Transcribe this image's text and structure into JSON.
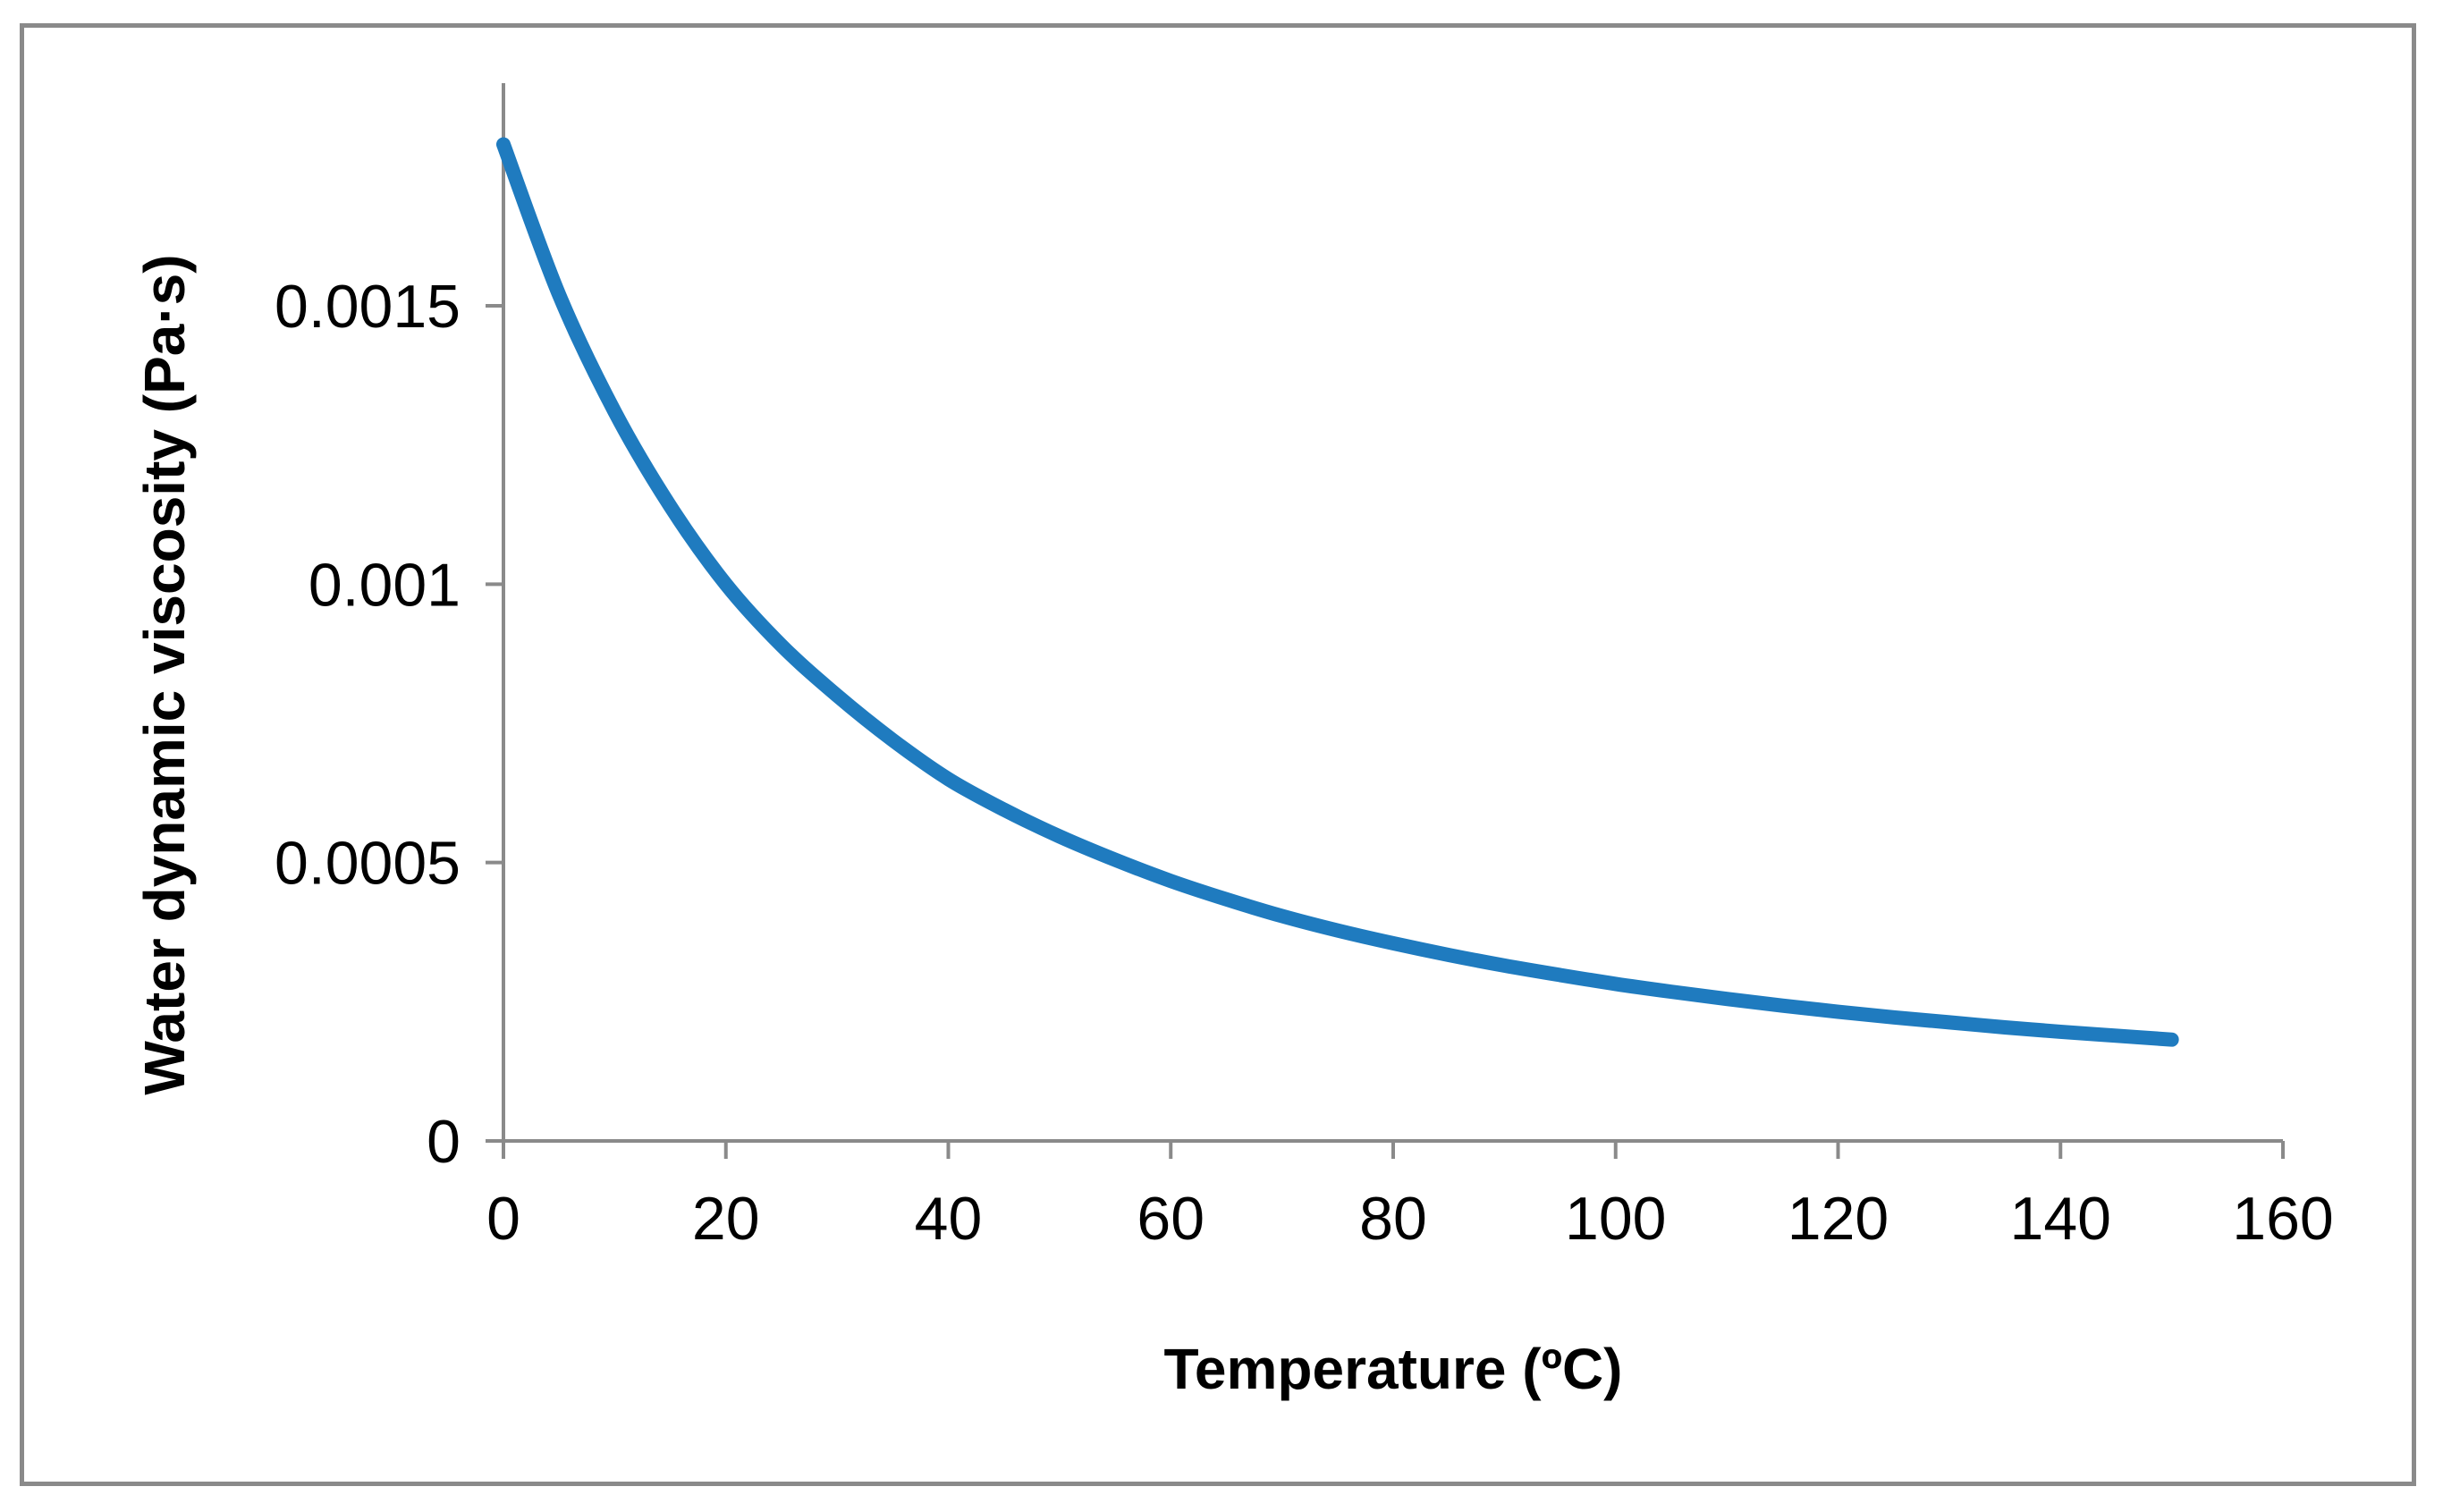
{
  "chart_data": {
    "type": "line",
    "title": "",
    "xlabel": "Temperature (ºC)",
    "ylabel": "Water dynamic viscosity (Pa·s)",
    "xlim": [
      0,
      160
    ],
    "ylim": [
      0,
      0.0019
    ],
    "xticks": [
      0,
      20,
      40,
      60,
      80,
      100,
      120,
      140,
      160
    ],
    "xtick_labels": [
      "0",
      "20",
      "40",
      "60",
      "80",
      "100",
      "120",
      "140",
      "160"
    ],
    "yticks": [
      0,
      0.0005,
      0.001,
      0.0015
    ],
    "ytick_labels": [
      "0",
      "0.0005",
      "0.001",
      "0.0015"
    ],
    "grid": false,
    "legend": "none",
    "series": [
      {
        "name": "Water dynamic viscosity",
        "color": "#1f7bbf",
        "x": [
          0,
          5,
          10,
          15,
          20,
          25,
          30,
          35,
          40,
          45,
          50,
          55,
          60,
          65,
          70,
          75,
          80,
          85,
          90,
          95,
          100,
          105,
          110,
          115,
          120,
          125,
          130,
          135,
          140,
          145,
          150
        ],
        "y": [
          0.00179,
          0.00152,
          0.00131,
          0.00114,
          0.001,
          0.00089,
          0.0008,
          0.00072,
          0.00065,
          0.000595,
          0.000547,
          0.000505,
          0.000467,
          0.000434,
          0.000404,
          0.000378,
          0.000355,
          0.000334,
          0.000315,
          0.000298,
          0.000282,
          0.000268,
          0.000255,
          0.000243,
          0.000232,
          0.000222,
          0.000213,
          0.000204,
          0.000196,
          0.000189,
          0.000182
        ]
      }
    ]
  }
}
